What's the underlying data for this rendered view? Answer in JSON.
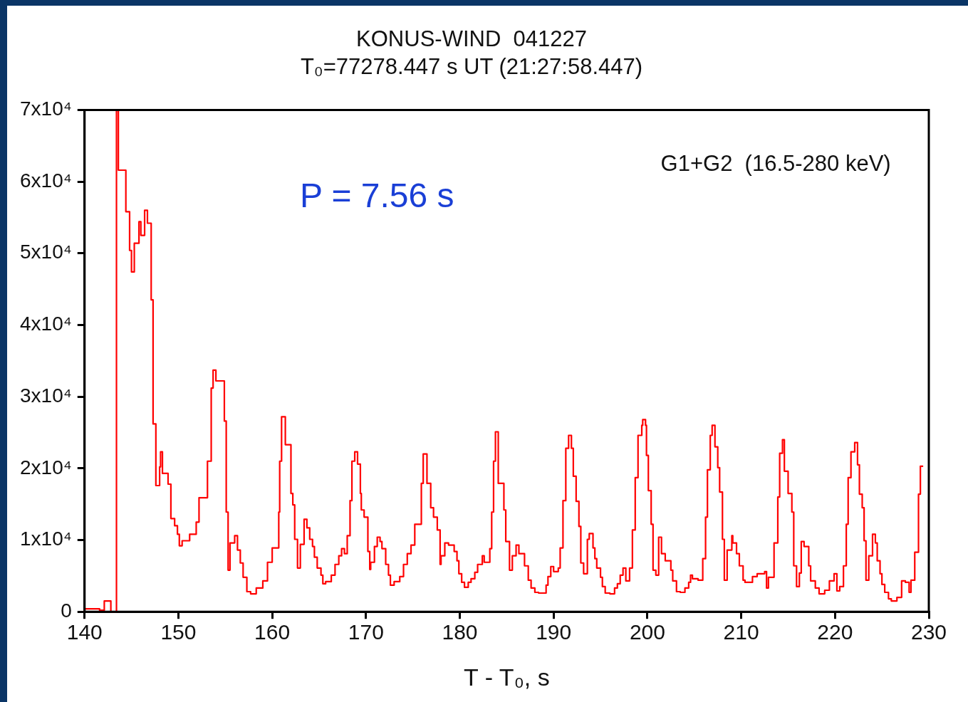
{
  "chart_data": {
    "type": "step",
    "title": "KONUS-WIND  041227",
    "subtitle": "T₀=77278.447 s UT (21:27:58.447)",
    "xlabel": "T - T₀, s",
    "annotations": [
      "P = 7.56 s",
      "G1+G2  (16.5-280 keV)"
    ],
    "xlim": [
      140,
      230
    ],
    "xticks": [
      140,
      150,
      160,
      170,
      180,
      190,
      200,
      210,
      220,
      230
    ],
    "ylim": [
      0,
      70000
    ],
    "yticks": [
      {
        "value": 0,
        "label": "0"
      },
      {
        "value": 10000,
        "label": "1x10⁴"
      },
      {
        "value": 20000,
        "label": "2x10⁴"
      },
      {
        "value": 30000,
        "label": "3x10⁴"
      },
      {
        "value": 40000,
        "label": "4x10⁴"
      },
      {
        "value": 50000,
        "label": "5x10⁴"
      },
      {
        "value": 60000,
        "label": "6x10⁴"
      },
      {
        "value": 70000,
        "label": "7x10⁴"
      }
    ],
    "grid": false,
    "marker": "none",
    "line_style": "solid",
    "x": [
      140.0,
      141.6,
      142.1,
      142.8,
      143.4,
      143.6,
      144.4,
      144.8,
      145.0,
      145.3,
      145.8,
      146.0,
      146.4,
      146.7,
      147.1,
      147.3,
      147.6,
      148.0,
      148.1,
      148.3,
      148.9,
      149.2,
      149.6,
      149.9,
      150.1,
      150.4,
      151.2,
      151.9,
      152.2,
      153.1,
      153.5,
      153.7,
      154.0,
      154.9,
      155.1,
      155.3,
      155.5,
      156.0,
      156.3,
      156.6,
      156.9,
      157.3,
      157.7,
      158.3,
      159.0,
      159.5,
      160.0,
      160.7,
      160.8,
      161.0,
      161.4,
      162.0,
      162.2,
      162.4,
      162.7,
      163.0,
      163.4,
      163.7,
      164.0,
      164.3,
      164.5,
      164.8,
      165.2,
      165.4,
      165.7,
      166.3,
      166.7,
      167.1,
      167.4,
      167.7,
      168.0,
      168.3,
      168.5,
      168.8,
      169.1,
      169.4,
      169.5,
      169.8,
      170.2,
      170.4,
      170.5,
      170.9,
      171.2,
      171.5,
      171.7,
      172.1,
      172.4,
      172.6,
      173.0,
      173.6,
      174.0,
      174.4,
      174.8,
      175.2,
      175.9,
      176.1,
      176.5,
      176.9,
      177.2,
      177.6,
      177.9,
      178.0,
      178.4,
      178.8,
      179.4,
      179.7,
      179.9,
      180.2,
      180.5,
      180.9,
      181.2,
      181.6,
      181.9,
      182.4,
      182.6,
      183.2,
      183.4,
      183.6,
      183.8,
      184.1,
      184.7,
      184.9,
      185.3,
      185.6,
      186.0,
      186.3,
      186.9,
      187.3,
      187.6,
      188.0,
      188.4,
      189.2,
      189.4,
      189.7,
      190.0,
      190.5,
      190.7,
      191.0,
      191.3,
      191.6,
      191.9,
      192.1,
      192.4,
      192.7,
      192.9,
      193.2,
      193.6,
      193.8,
      194.2,
      194.4,
      194.6,
      195.0,
      195.2,
      195.5,
      196.0,
      196.5,
      196.8,
      197.1,
      197.4,
      197.7,
      198.1,
      198.4,
      198.7,
      199.0,
      199.4,
      199.5,
      199.8,
      199.9,
      200.1,
      200.4,
      200.6,
      200.9,
      201.2,
      201.5,
      201.9,
      202.5,
      202.7,
      203.1,
      203.5,
      204.0,
      204.4,
      204.6,
      204.8,
      205.4,
      205.9,
      206.2,
      206.4,
      206.7,
      206.9,
      207.2,
      207.5,
      207.7,
      208.0,
      208.2,
      208.5,
      209.0,
      209.1,
      209.5,
      209.8,
      210.2,
      210.4,
      211.2,
      211.7,
      212.5,
      212.7,
      212.9,
      213.5,
      213.9,
      214.1,
      214.4,
      214.6,
      215.0,
      215.4,
      215.6,
      215.9,
      216.2,
      216.4,
      216.7,
      217.2,
      217.4,
      217.9,
      218.3,
      218.9,
      219.4,
      219.9,
      220.2,
      220.5,
      220.9,
      221.2,
      221.4,
      221.7,
      222.1,
      222.4,
      222.6,
      222.9,
      223.1,
      223.3,
      223.6,
      224.0,
      224.3,
      224.5,
      224.8,
      225.0,
      225.3,
      225.7,
      226.0,
      226.6,
      227.1,
      227.5,
      227.9,
      228.1,
      228.5,
      228.9,
      229.1,
      229.4
    ],
    "series": [
      {
        "color": "#ff0000",
        "values": [
          0,
          400,
          200,
          1500,
          0,
          70000,
          61600,
          55800,
          50400,
          47400,
          51400,
          54400,
          52500,
          56000,
          54200,
          43500,
          26200,
          17600,
          20200,
          22300,
          19300,
          17800,
          13000,
          12000,
          10800,
          9200,
          9900,
          10800,
          12500,
          15900,
          21000,
          31200,
          33700,
          32200,
          26600,
          13900,
          5800,
          9600,
          10600,
          8600,
          6800,
          4800,
          2800,
          2500,
          3300,
          4300,
          6900,
          8900,
          13900,
          21000,
          27200,
          23300,
          16500,
          14900,
          10100,
          6100,
          9400,
          12900,
          11700,
          10100,
          9100,
          7600,
          6100,
          5100,
          3900,
          4200,
          5100,
          6600,
          7800,
          8800,
          8100,
          10600,
          15500,
          21000,
          22300,
          20600,
          16500,
          14200,
          13200,
          8400,
          5900,
          6900,
          9100,
          10400,
          9800,
          8800,
          6600,
          5100,
          3700,
          4200,
          4900,
          6600,
          8100,
          9300,
          12200,
          17900,
          22000,
          17900,
          14500,
          13200,
          11400,
          6600,
          7800,
          9600,
          9300,
          8400,
          7100,
          5300,
          4100,
          3400,
          4100,
          4600,
          5500,
          6600,
          7800,
          6900,
          8800,
          13900,
          21000,
          25100,
          17900,
          14200,
          9800,
          5800,
          7800,
          9300,
          8100,
          6400,
          4400,
          3300,
          2700,
          2600,
          3700,
          4900,
          6300,
          5600,
          6100,
          8900,
          15500,
          22800,
          24600,
          22800,
          18900,
          15400,
          11900,
          6800,
          5300,
          10100,
          10900,
          8900,
          7400,
          6100,
          4800,
          3500,
          2600,
          2500,
          3300,
          3900,
          5100,
          6100,
          4300,
          6100,
          11400,
          18700,
          24600,
          26000,
          26800,
          26000,
          21800,
          16900,
          12200,
          5800,
          5100,
          10400,
          8100,
          7100,
          5800,
          4300,
          2800,
          2700,
          3300,
          4100,
          5100,
          4600,
          4400,
          7400,
          13200,
          19800,
          24600,
          26000,
          23000,
          20100,
          16700,
          10100,
          4400,
          8600,
          10600,
          9600,
          8100,
          6400,
          4400,
          4100,
          4900,
          5300,
          5600,
          3300,
          4800,
          9600,
          16000,
          22100,
          24000,
          19600,
          16500,
          13900,
          6400,
          3500,
          5400,
          9800,
          9100,
          6400,
          4300,
          3300,
          2500,
          3000,
          4300,
          5300,
          2900,
          3500,
          6400,
          12200,
          18700,
          22300,
          23600,
          20500,
          16400,
          14500,
          9900,
          4400,
          7800,
          10800,
          9600,
          7100,
          5300,
          3800,
          2700,
          1800,
          1500,
          2000,
          4300,
          4100,
          2700,
          4400,
          8300,
          16400,
          20300
        ]
      }
    ]
  }
}
